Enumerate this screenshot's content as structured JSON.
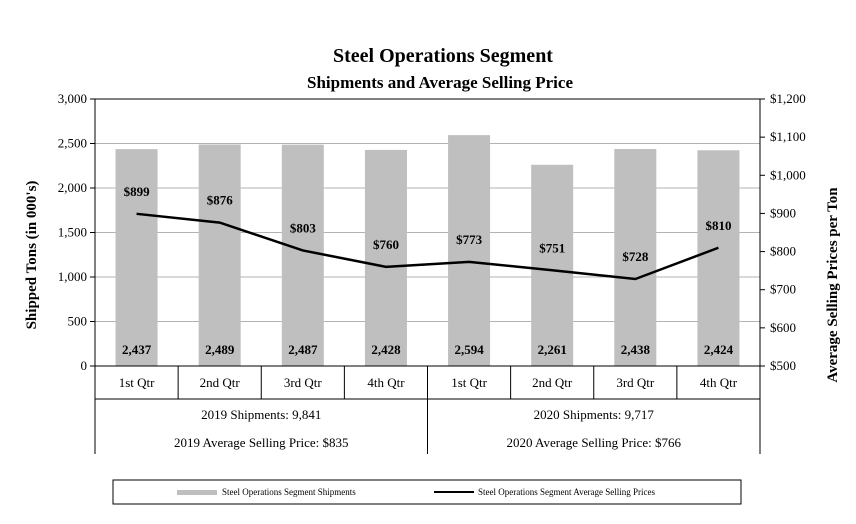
{
  "chart_data": {
    "type": "bar+line",
    "title": "Steel Operations  Segment",
    "subtitle": "Shipments and Average Selling Price",
    "ylabel_left": "Shipped Tons (in 000's)",
    "ylabel_right": "Average Selling Prices per Ton",
    "ylim_left": [
      0,
      3000
    ],
    "yticks_left": [
      "0",
      "500",
      "1,000",
      "1,500",
      "2,000",
      "2,500",
      "3,000"
    ],
    "ylim_right": [
      500,
      1200
    ],
    "yticks_right": [
      "$500",
      "$600",
      "$700",
      "$800",
      "$900",
      "$1,000",
      "$1,100",
      "$1,200"
    ],
    "categories": [
      "1st Qtr",
      "2nd Qtr",
      "3rd Qtr",
      "4th Qtr",
      "1st Qtr",
      "2nd Qtr",
      "3rd Qtr",
      "4th Qtr"
    ],
    "groups": [
      {
        "shipments_label": "2019 Shipments: 9,841",
        "price_label": "2019 Average Selling Price: $835"
      },
      {
        "shipments_label": "2020 Shipments: 9,717",
        "price_label": "2020 Average Selling Price: $766"
      }
    ],
    "series": [
      {
        "name": "Steel Operations Segment Shipments",
        "type": "bar",
        "axis": "left",
        "color": "#bfbfbf",
        "values": [
          2437,
          2489,
          2487,
          2428,
          2594,
          2261,
          2438,
          2424
        ],
        "labels": [
          "2,437",
          "2,489",
          "2,487",
          "2,428",
          "2,594",
          "2,261",
          "2,438",
          "2,424"
        ]
      },
      {
        "name": "Steel Operations Segment Average Selling Prices",
        "type": "line",
        "axis": "right",
        "color": "#000000",
        "values": [
          899,
          876,
          803,
          760,
          773,
          751,
          728,
          810
        ],
        "labels": [
          "$899",
          "$876",
          "$803",
          "$760",
          "$773",
          "$751",
          "$728",
          "$810"
        ]
      }
    ],
    "legend_position": "bottom"
  }
}
